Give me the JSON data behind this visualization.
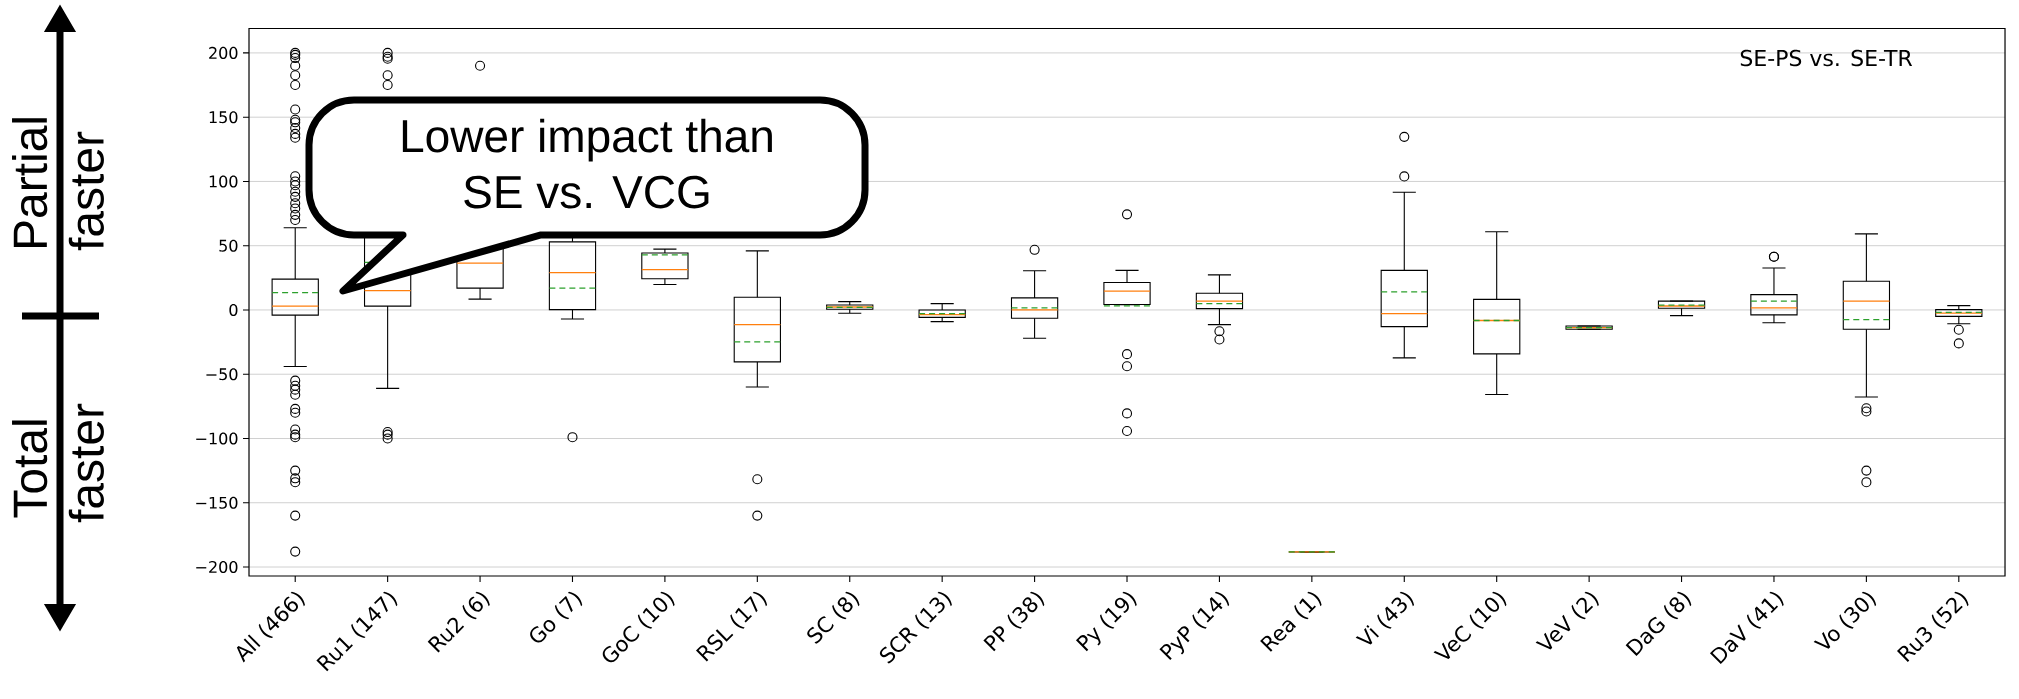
{
  "chart_data": {
    "type": "box",
    "categories": [
      "All (466)",
      "Ru1 (147)",
      "Ru2 (6)",
      "Go (7)",
      "GoC (10)",
      "RSL (17)",
      "SC (8)",
      "SCR (13)",
      "PP (38)",
      "Py (19)",
      "PyP (14)",
      "Rea (1)",
      "Vi (43)",
      "VeC (10)",
      "VeV (2)",
      "DaG (8)",
      "DaV (41)",
      "Vo (30)",
      "Ru3 (52)"
    ],
    "boxes": [
      {
        "low": -44,
        "q1": -4,
        "median": 3,
        "q3": 24,
        "high": 64,
        "mean": 13.5,
        "outliers": [
          200,
          198.5,
          196,
          190,
          182.6,
          175,
          156,
          148,
          146,
          141.6,
          137,
          134,
          104,
          100,
          97,
          92,
          88,
          83,
          79,
          74,
          70,
          -55,
          -59,
          -62,
          -66,
          -77,
          -80,
          -93,
          -97,
          -99,
          -125,
          -131,
          -134,
          -160,
          -188
        ]
      },
      {
        "low": -61,
        "q1": 3,
        "median": 15,
        "q3": 60,
        "high": 130,
        "mean": 37,
        "outliers": [
          200,
          197,
          195.5,
          182.6,
          175,
          -95,
          -97,
          -100
        ]
      },
      {
        "low": 8.4,
        "q1": 17,
        "median": 36.5,
        "q3": 57,
        "high": 90,
        "outliers": [
          190
        ]
      },
      {
        "low": -7,
        "q1": 0.3,
        "median": 29,
        "q3": 53,
        "high": 62,
        "mean": 17,
        "outliers": [
          -99
        ]
      },
      {
        "low": 19.8,
        "q1": 24.3,
        "median": 31.4,
        "q3": 44.3,
        "high": 47.3,
        "mean": 42.8
      },
      {
        "low": -60,
        "q1": -40.4,
        "median": -11.4,
        "q3": 9.9,
        "high": 46,
        "mean": -24.9,
        "outliers": [
          -131.7,
          -160
        ]
      },
      {
        "low": -2.6,
        "q1": 0.6,
        "median": 2.3,
        "q3": 3.9,
        "high": 6.5,
        "mean": 2
      },
      {
        "low": -9.1,
        "q1": -5.8,
        "median": -3.6,
        "q3": 0,
        "high": 4.9,
        "mean": -2.9
      },
      {
        "low": -22,
        "q1": -6.5,
        "median": 0,
        "q3": 9.4,
        "high": 30.5,
        "mean": 1.6,
        "outliers": [
          46.8
        ]
      },
      {
        "low": 4,
        "q1": 4.2,
        "median": 14.6,
        "q3": 21.4,
        "high": 30.8,
        "mean": 3.2,
        "outliers": [
          74.4,
          -34.4,
          -43.8,
          -80.5,
          -94.2
        ]
      },
      {
        "low": -11.4,
        "q1": 1,
        "median": 6.8,
        "q3": 13,
        "high": 27.3,
        "mean": 4.9,
        "outliers": [
          -16.6,
          -23
        ]
      },
      {
        "low": -188.3,
        "q1": -188.3,
        "median": -188.3,
        "q3": -188.3,
        "high": -188.3,
        "mean": -188.3
      },
      {
        "low": -37.3,
        "q1": -13,
        "median": -2.9,
        "q3": 30.8,
        "high": 91.6,
        "mean": 14,
        "outliers": [
          134.7,
          103.9
        ]
      },
      {
        "low": -65.8,
        "q1": -34.2,
        "median": -8.2,
        "q3": 8.2,
        "high": 60.8,
        "mean": -8.2
      },
      {
        "low": -15,
        "q1": -15,
        "median": -13.8,
        "q3": -12.5,
        "high": -12.5,
        "mean": -13.8
      },
      {
        "low": -4.4,
        "q1": 1.3,
        "median": 3.1,
        "q3": 6.9,
        "high": 6.9,
        "mean": 3.8
      },
      {
        "low": -10,
        "q1": -3.8,
        "median": 1.6,
        "q3": 11.9,
        "high": 32.6,
        "mean": 6.9,
        "outliers": [
          41.4,
          41.4
        ]
      },
      {
        "low": -67.7,
        "q1": -15,
        "median": 6.9,
        "q3": 22.3,
        "high": 59.2,
        "mean": -7.5,
        "outliers": [
          -76.5,
          -79,
          -125,
          -134
        ]
      },
      {
        "low": -10.7,
        "q1": -5,
        "median": -2.5,
        "q3": 0.3,
        "high": 3.4,
        "mean": -1.9,
        "outliers": [
          -15.4,
          -26
        ]
      }
    ],
    "ylim": [
      -207,
      219
    ],
    "yticks": [
      {
        "value": -200,
        "label": "−200"
      },
      {
        "value": -150,
        "label": "−150"
      },
      {
        "value": -100,
        "label": "−100"
      },
      {
        "value": -50,
        "label": "−50"
      },
      0,
      50,
      100,
      150,
      200
    ],
    "grid": "y",
    "marker": "circle",
    "annotations": [
      "SE-PS vs. SE-TR",
      "Lower impact than",
      "SE vs. VCG",
      "Partial faster",
      "Total faster"
    ]
  }
}
